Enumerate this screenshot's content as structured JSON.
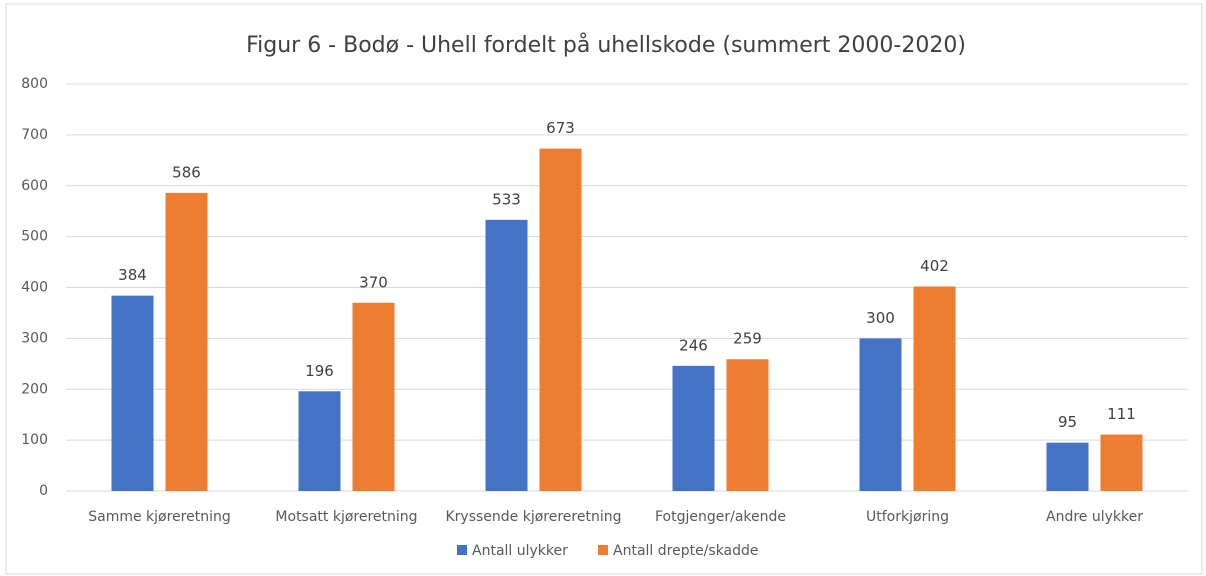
{
  "chart_data": {
    "type": "bar",
    "title": "Figur 6 - Bodø - Uhell fordelt på uhellskode (summert 2000-2020)",
    "categories": [
      "Samme kjøreretning",
      "Motsatt kjøreretning",
      "Kryssende kjørereretning",
      "Fotgjenger/akende",
      "Utforkjøring",
      "Andre ulykker"
    ],
    "series": [
      {
        "name": "Antall ulykker",
        "color": "#4472c4",
        "values": [
          384,
          196,
          533,
          246,
          300,
          95
        ]
      },
      {
        "name": "Antall drepte/skadde",
        "color": "#ed7d31",
        "values": [
          586,
          370,
          673,
          259,
          402,
          111
        ]
      }
    ],
    "ylim": [
      0,
      800
    ],
    "yticks": [
      0,
      100,
      200,
      300,
      400,
      500,
      600,
      700,
      800
    ],
    "grid": true,
    "legend": "bottom"
  }
}
